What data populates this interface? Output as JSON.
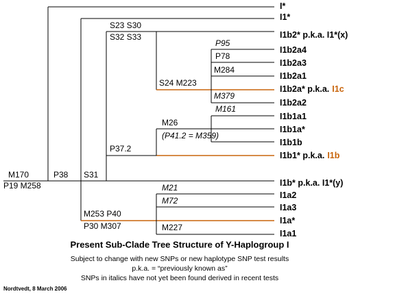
{
  "tree": {
    "leaves": [
      {
        "label": "I*"
      },
      {
        "label": "I1*"
      },
      {
        "label": "I1b2* p.k.a. I1*(x)"
      },
      {
        "label": "I1b2a4"
      },
      {
        "label": "I1b2a3"
      },
      {
        "label": "I1b2a1"
      },
      {
        "label": "I1b2a* p.k.a.",
        "highlight": "I1c"
      },
      {
        "label": "I1b2a2"
      },
      {
        "label": "I1b1a1"
      },
      {
        "label": "I1b1a*"
      },
      {
        "label": "I1b1b"
      },
      {
        "label": "I1b1* p.k.a.",
        "highlight": "I1b"
      },
      {
        "label": "I1b* p.k.a. I1*(y)"
      },
      {
        "label": "I1a2"
      },
      {
        "label": "I1a3"
      },
      {
        "label": "I1a*"
      },
      {
        "label": "I1a1"
      }
    ],
    "snps": [
      {
        "text": "M170",
        "italic": false
      },
      {
        "text": "P19 M258",
        "italic": false
      },
      {
        "text": "P38",
        "italic": false
      },
      {
        "text": "S31",
        "italic": false
      },
      {
        "text": "S23 S30",
        "italic": false
      },
      {
        "text": "S32 S33",
        "italic": false
      },
      {
        "text": "P95",
        "italic": true
      },
      {
        "text": "P78",
        "italic": false
      },
      {
        "text": "M284",
        "italic": false
      },
      {
        "text": "S24 M223",
        "italic": false
      },
      {
        "text": "M379",
        "italic": true
      },
      {
        "text": "M161",
        "italic": true
      },
      {
        "text": "M26",
        "italic": false
      },
      {
        "text": "(P41.2 = M359)",
        "italic": true
      },
      {
        "text": "P37.2",
        "italic": false
      },
      {
        "text": "M21",
        "italic": true
      },
      {
        "text": "M72",
        "italic": true
      },
      {
        "text": "M253 P40",
        "italic": false
      },
      {
        "text": "P30 M307",
        "italic": false
      },
      {
        "text": "M227",
        "italic": false
      }
    ]
  },
  "caption": {
    "title": "Present Sub-Clade Tree Structure of Y-Haplogroup I",
    "lines": [
      "Subject to change with new SNPs or new haplotype SNP test results",
      "p.k.a. = “previously known as”",
      "SNPs in italics have not yet been found derived in recent tests"
    ],
    "credit": "Nordtvedt, 8 March 2006"
  }
}
